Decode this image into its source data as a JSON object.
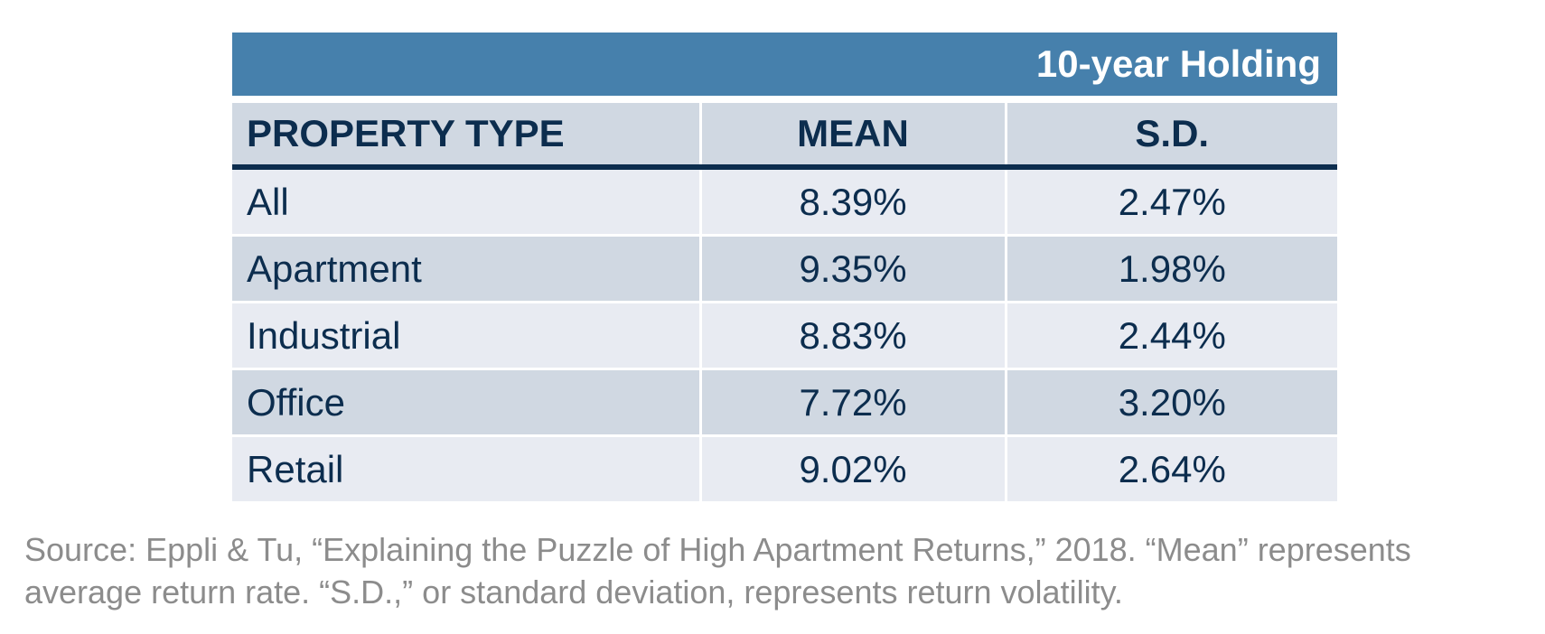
{
  "chart_data": {
    "type": "table",
    "title": "10-year Holding",
    "columns": [
      "PROPERTY TYPE",
      "MEAN",
      "S.D."
    ],
    "rows": [
      {
        "property_type": "All",
        "mean": "8.39%",
        "sd": "2.47%"
      },
      {
        "property_type": "Apartment",
        "mean": "9.35%",
        "sd": "1.98%"
      },
      {
        "property_type": "Industrial",
        "mean": "8.83%",
        "sd": "2.44%"
      },
      {
        "property_type": "Office",
        "mean": "7.72%",
        "sd": "3.20%"
      },
      {
        "property_type": "Retail",
        "mean": "9.02%",
        "sd": "2.64%"
      }
    ]
  },
  "source_note": "Source: Eppli & Tu, “Explaining the Puzzle of High Apartment Returns,” 2018. “Mean” represents average return rate. “S.D.,” or standard deviation, represents return volatility.",
  "colors": {
    "banner": "#4680ac",
    "header_row": "#d0d8e2",
    "row_light": "#e8ebf2",
    "row_dark": "#d0d8e2",
    "text": "#0c2d4e",
    "source_text": "#8c8c8c"
  }
}
